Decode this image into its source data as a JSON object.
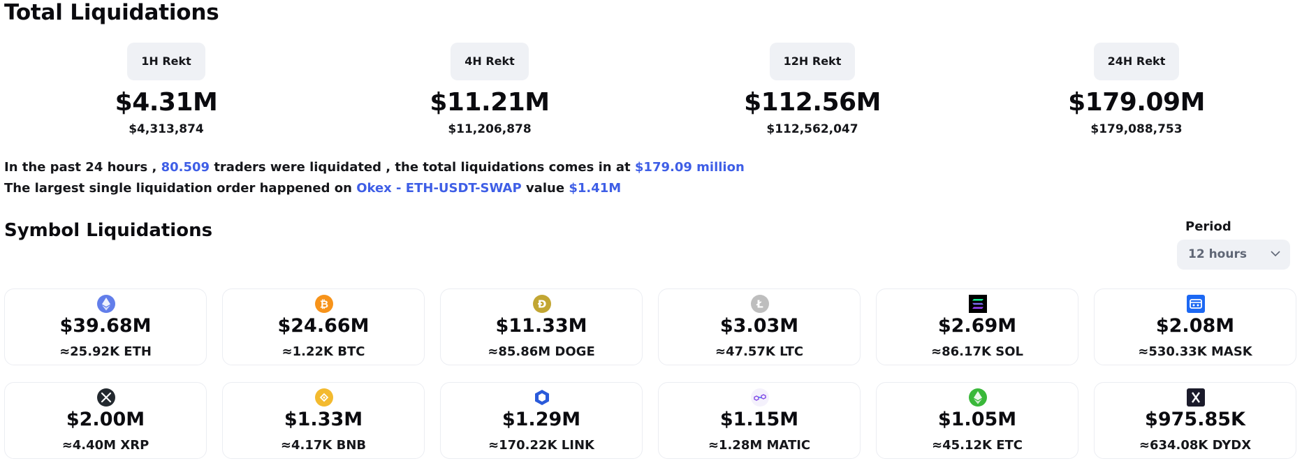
{
  "page_title": "Total Liquidations",
  "rekt": [
    {
      "label": "1H Rekt",
      "amount": "$4.31M",
      "exact": "$4,313,874"
    },
    {
      "label": "4H Rekt",
      "amount": "$11.21M",
      "exact": "$11,206,878"
    },
    {
      "label": "12H Rekt",
      "amount": "$112.56M",
      "exact": "$112,562,047"
    },
    {
      "label": "24H Rekt",
      "amount": "$179.09M",
      "exact": "$179,088,753"
    }
  ],
  "summary": {
    "line1_prefix": "In the past 24 hours ,",
    "traders_count": "80.509",
    "line1_middle": "traders were liquidated , the total liquidations comes in at",
    "total_amount": "$179.09 million",
    "line2_prefix": "The largest single liquidation order happened on",
    "largest_order": "Okex - ETH-USDT-SWAP",
    "line2_middle": "value",
    "largest_value": "$1.41M"
  },
  "symbols": {
    "title": "Symbol Liquidations",
    "period_label": "Period",
    "period_value": "12 hours",
    "cards": [
      {
        "icon": "eth-icon",
        "color": "#627eea",
        "amount": "$39.68M",
        "qty": "≈25.92K ETH"
      },
      {
        "icon": "btc-icon",
        "color": "#f7931a",
        "amount": "$24.66M",
        "qty": "≈1.22K BTC"
      },
      {
        "icon": "doge-icon",
        "color": "#c2a633",
        "amount": "$11.33M",
        "qty": "≈85.86M DOGE"
      },
      {
        "icon": "ltc-icon",
        "color": "#bebebe",
        "amount": "$3.03M",
        "qty": "≈47.57K LTC"
      },
      {
        "icon": "sol-icon",
        "color": "#000000",
        "amount": "$2.69M",
        "qty": "≈86.17K SOL"
      },
      {
        "icon": "mask-icon",
        "color": "#1c68f3",
        "amount": "$2.08M",
        "qty": "≈530.33K MASK"
      },
      {
        "icon": "xrp-icon",
        "color": "#23292f",
        "amount": "$2.00M",
        "qty": "≈4.40M XRP"
      },
      {
        "icon": "bnb-icon",
        "color": "#f3ba2f",
        "amount": "$1.33M",
        "qty": "≈4.17K BNB"
      },
      {
        "icon": "link-icon",
        "color": "#2a5ada",
        "amount": "$1.29M",
        "qty": "≈170.22K LINK"
      },
      {
        "icon": "matic-icon",
        "color": "#8247e5",
        "amount": "$1.15M",
        "qty": "≈1.28M MATIC"
      },
      {
        "icon": "etc-icon",
        "color": "#3ab83a",
        "amount": "$1.05M",
        "qty": "≈45.12K ETC"
      },
      {
        "icon": "dydx-icon",
        "color": "#1b1b2b",
        "amount": "$975.85K",
        "qty": "≈634.08K DYDX"
      }
    ]
  }
}
